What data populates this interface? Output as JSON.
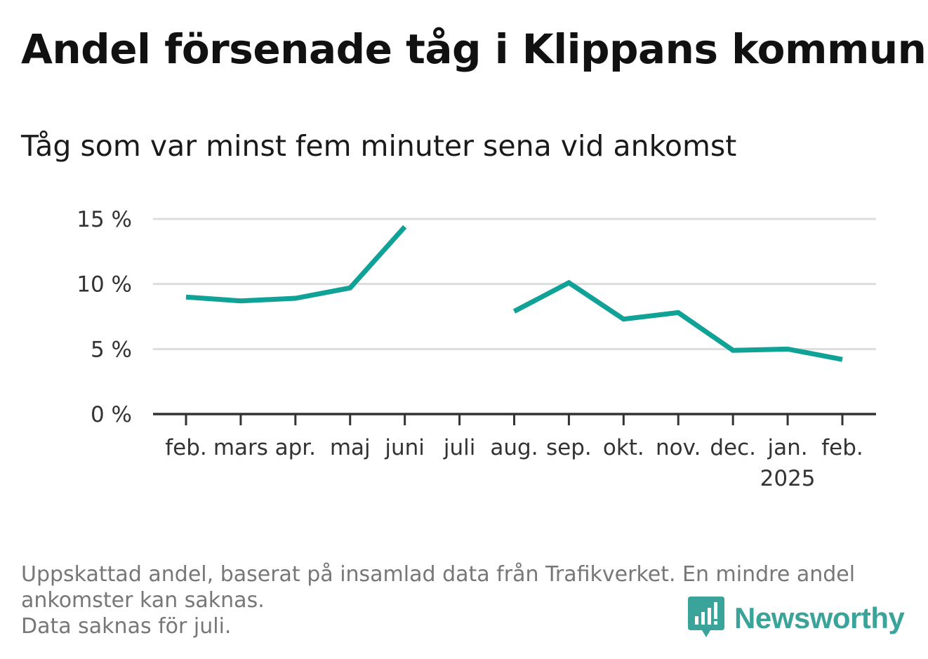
{
  "title": "Andel försenade tåg i Klippans kommun",
  "subtitle": "Tåg som var minst fem minuter sena vid ankomst",
  "footnote": {
    "line1": "Uppskattad andel, baserat på insamlad data från Trafikverket. En mindre andel",
    "line2": "ankomster kan saknas.",
    "line3": "Data saknas för juli."
  },
  "brand": {
    "name": "Newsworthy",
    "color": "#3aa39a",
    "icon": "newsworthy-logo-icon"
  },
  "chart_data": {
    "type": "line",
    "categories": [
      "feb.",
      "mars",
      "apr.",
      "maj",
      "juni",
      "juli",
      "aug.",
      "sep.",
      "okt.",
      "nov.",
      "dec.",
      "jan.",
      "feb."
    ],
    "year_label": "2025",
    "series": [
      {
        "values": [
          9.0,
          8.7,
          8.9,
          9.7,
          14.4,
          null,
          7.9,
          10.1,
          7.3,
          7.8,
          4.9,
          5.0,
          4.2
        ]
      }
    ],
    "y_ticks": [
      {
        "value": 0,
        "label": "0 %"
      },
      {
        "value": 5,
        "label": "5 %"
      },
      {
        "value": 10,
        "label": "10 %"
      },
      {
        "value": 15,
        "label": "15 %"
      }
    ],
    "ylim": [
      0,
      15
    ],
    "grid": true,
    "line_color": "#10a197",
    "grid_color": "#dddddd",
    "axis_color": "#333333"
  }
}
